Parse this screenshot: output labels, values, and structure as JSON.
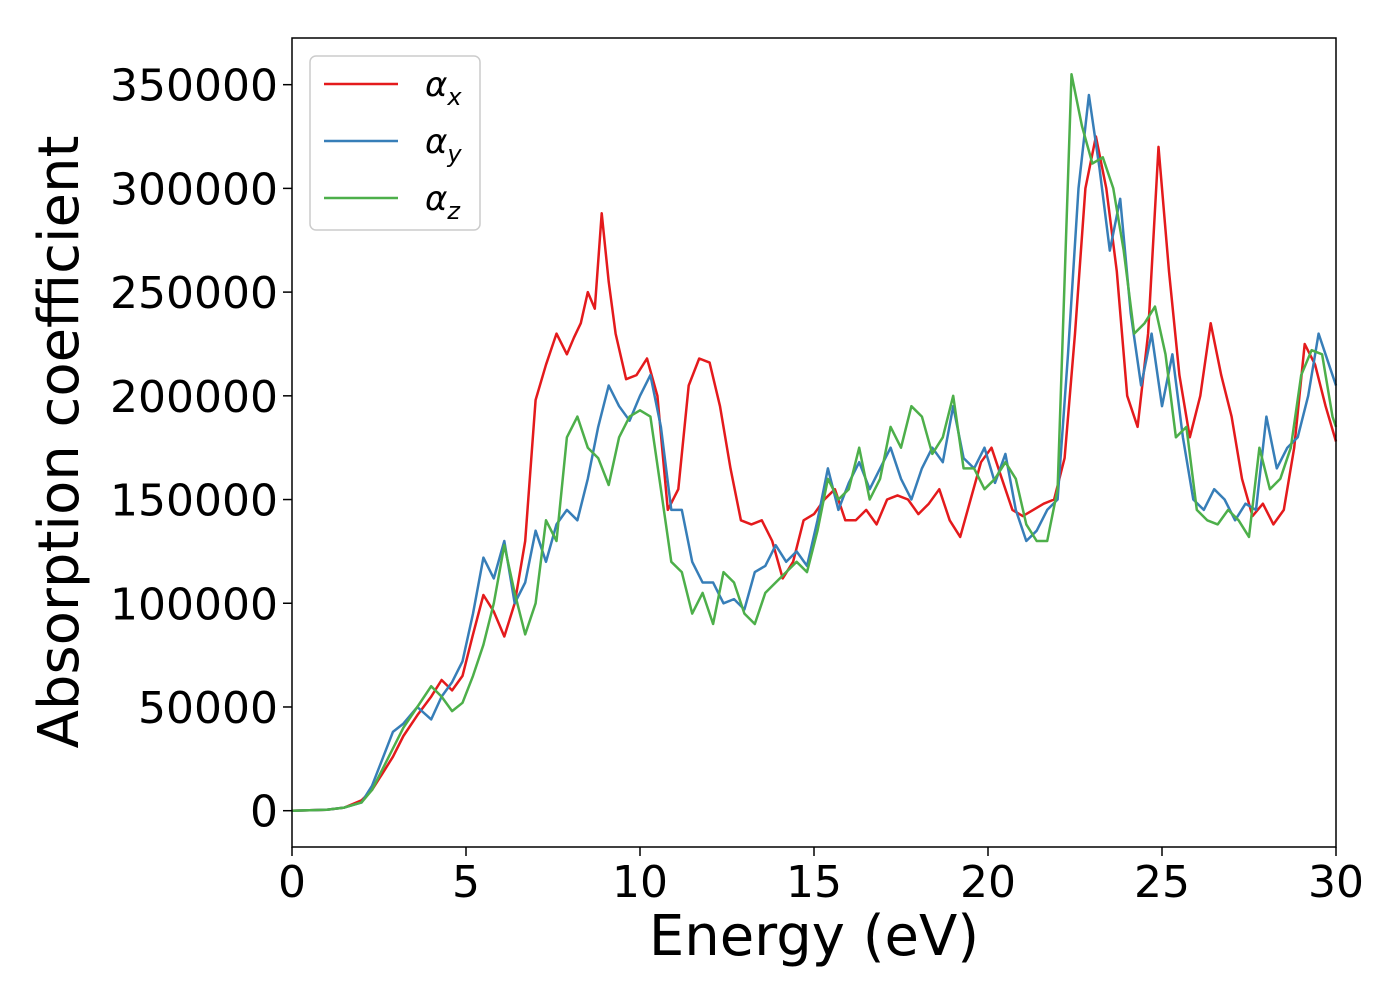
{
  "chart_data": {
    "type": "line",
    "title": "",
    "xlabel": "Energy (eV)",
    "ylabel": "Absorption coefficient",
    "xlim": [
      0,
      30
    ],
    "ylim": [
      -17500,
      372500
    ],
    "xticks": [
      0,
      5,
      10,
      15,
      20,
      25,
      30
    ],
    "yticks": [
      0,
      50000,
      100000,
      150000,
      200000,
      250000,
      300000,
      350000
    ],
    "grid": false,
    "legend_position": "top-left",
    "series": [
      {
        "name": "α",
        "subscript": "x",
        "color": "#e41a1c",
        "x": [
          0,
          1,
          1.5,
          2,
          2.3,
          2.6,
          2.9,
          3.2,
          3.6,
          4.0,
          4.3,
          4.6,
          4.9,
          5.2,
          5.5,
          5.8,
          6.1,
          6.4,
          6.7,
          7.0,
          7.3,
          7.6,
          7.9,
          8.1,
          8.3,
          8.5,
          8.7,
          8.9,
          9.1,
          9.3,
          9.6,
          9.9,
          10.2,
          10.5,
          10.8,
          11.1,
          11.4,
          11.7,
          12.0,
          12.3,
          12.6,
          12.9,
          13.2,
          13.5,
          13.8,
          14.1,
          14.4,
          14.7,
          15.0,
          15.3,
          15.6,
          15.9,
          16.2,
          16.5,
          16.8,
          17.1,
          17.4,
          17.7,
          18.0,
          18.3,
          18.6,
          18.9,
          19.2,
          19.5,
          19.8,
          20.1,
          20.4,
          20.7,
          21.0,
          21.3,
          21.6,
          21.9,
          22.2,
          22.5,
          22.8,
          23.1,
          23.4,
          23.7,
          24.0,
          24.3,
          24.6,
          24.9,
          25.2,
          25.5,
          25.8,
          26.1,
          26.4,
          26.7,
          27.0,
          27.3,
          27.6,
          27.9,
          28.2,
          28.5,
          28.8,
          29.1,
          29.4,
          29.7,
          30.0
        ],
        "y": [
          0,
          500,
          1500,
          5000,
          10000,
          18000,
          26000,
          36000,
          46000,
          55000,
          63000,
          58000,
          65000,
          85000,
          104000,
          96000,
          84000,
          100000,
          130000,
          198000,
          215000,
          230000,
          220000,
          228000,
          235000,
          250000,
          242000,
          288000,
          255000,
          230000,
          208000,
          210000,
          218000,
          200000,
          145000,
          155000,
          205000,
          218000,
          216000,
          195000,
          165000,
          140000,
          138000,
          140000,
          130000,
          112000,
          120000,
          140000,
          143000,
          150000,
          155000,
          140000,
          140000,
          145000,
          138000,
          150000,
          152000,
          150000,
          143000,
          148000,
          155000,
          140000,
          132000,
          150000,
          168000,
          175000,
          160000,
          145000,
          142000,
          145000,
          148000,
          150000,
          170000,
          230000,
          300000,
          325000,
          300000,
          260000,
          200000,
          185000,
          230000,
          320000,
          260000,
          210000,
          180000,
          200000,
          235000,
          210000,
          190000,
          160000,
          142000,
          148000,
          138000,
          145000,
          175000,
          225000,
          215000,
          195000,
          178000
        ]
      },
      {
        "name": "α",
        "subscript": "y",
        "color": "#377eb8",
        "x": [
          0,
          1,
          1.5,
          2,
          2.3,
          2.6,
          2.9,
          3.2,
          3.6,
          4.0,
          4.3,
          4.6,
          4.9,
          5.2,
          5.5,
          5.8,
          6.1,
          6.4,
          6.7,
          7.0,
          7.3,
          7.6,
          7.9,
          8.2,
          8.5,
          8.8,
          9.1,
          9.4,
          9.7,
          10.0,
          10.3,
          10.6,
          10.9,
          11.2,
          11.5,
          11.8,
          12.1,
          12.4,
          12.7,
          13.0,
          13.3,
          13.6,
          13.9,
          14.2,
          14.5,
          14.8,
          15.1,
          15.4,
          15.7,
          16.0,
          16.3,
          16.6,
          16.9,
          17.2,
          17.5,
          17.8,
          18.1,
          18.4,
          18.7,
          19.0,
          19.3,
          19.6,
          19.9,
          20.2,
          20.5,
          20.8,
          21.1,
          21.4,
          21.7,
          22.0,
          22.3,
          22.6,
          22.9,
          23.2,
          23.5,
          23.8,
          24.1,
          24.4,
          24.7,
          25.0,
          25.3,
          25.6,
          25.9,
          26.2,
          26.5,
          26.8,
          27.1,
          27.4,
          27.7,
          28.0,
          28.3,
          28.6,
          28.9,
          29.2,
          29.5,
          29.8,
          30.0
        ],
        "y": [
          0,
          500,
          1500,
          4000,
          12000,
          25000,
          38000,
          42000,
          50000,
          44000,
          55000,
          62000,
          72000,
          95000,
          122000,
          112000,
          130000,
          100000,
          110000,
          135000,
          120000,
          138000,
          145000,
          140000,
          160000,
          185000,
          205000,
          195000,
          188000,
          200000,
          210000,
          185000,
          145000,
          145000,
          120000,
          110000,
          110000,
          100000,
          102000,
          97000,
          115000,
          118000,
          128000,
          120000,
          125000,
          118000,
          140000,
          165000,
          145000,
          158000,
          168000,
          155000,
          165000,
          175000,
          160000,
          150000,
          165000,
          175000,
          168000,
          195000,
          170000,
          165000,
          175000,
          158000,
          172000,
          145000,
          130000,
          135000,
          145000,
          150000,
          220000,
          300000,
          345000,
          310000,
          270000,
          295000,
          240000,
          205000,
          230000,
          195000,
          220000,
          180000,
          150000,
          145000,
          155000,
          150000,
          140000,
          148000,
          145000,
          190000,
          165000,
          175000,
          180000,
          200000,
          230000,
          215000,
          205000
        ]
      },
      {
        "name": "α",
        "subscript": "z",
        "color": "#4daf4a",
        "x": [
          0,
          1,
          1.5,
          2,
          2.3,
          2.6,
          2.9,
          3.2,
          3.6,
          4.0,
          4.3,
          4.6,
          4.9,
          5.2,
          5.5,
          5.8,
          6.1,
          6.4,
          6.7,
          7.0,
          7.3,
          7.6,
          7.9,
          8.2,
          8.5,
          8.8,
          9.1,
          9.4,
          9.7,
          10.0,
          10.3,
          10.6,
          10.9,
          11.2,
          11.5,
          11.8,
          12.1,
          12.4,
          12.7,
          13.0,
          13.3,
          13.6,
          13.9,
          14.2,
          14.5,
          14.8,
          15.1,
          15.4,
          15.7,
          16.0,
          16.3,
          16.6,
          16.9,
          17.2,
          17.5,
          17.8,
          18.1,
          18.4,
          18.7,
          19.0,
          19.3,
          19.6,
          19.9,
          20.2,
          20.5,
          20.8,
          21.1,
          21.4,
          21.7,
          22.0,
          22.4,
          22.7,
          23.0,
          23.3,
          23.6,
          23.9,
          24.2,
          24.5,
          24.8,
          25.1,
          25.4,
          25.7,
          26.0,
          26.3,
          26.6,
          26.9,
          27.2,
          27.5,
          27.8,
          28.1,
          28.4,
          28.7,
          29.0,
          29.3,
          29.6,
          29.9,
          30.0
        ],
        "y": [
          0,
          500,
          1500,
          4000,
          10000,
          20000,
          30000,
          40000,
          50000,
          60000,
          55000,
          48000,
          52000,
          65000,
          80000,
          100000,
          128000,
          105000,
          85000,
          100000,
          140000,
          130000,
          180000,
          190000,
          175000,
          170000,
          157000,
          180000,
          190000,
          193000,
          190000,
          155000,
          120000,
          115000,
          95000,
          105000,
          90000,
          115000,
          110000,
          95000,
          90000,
          105000,
          110000,
          115000,
          120000,
          115000,
          135000,
          160000,
          150000,
          155000,
          175000,
          150000,
          160000,
          185000,
          175000,
          195000,
          190000,
          172000,
          180000,
          200000,
          165000,
          165000,
          155000,
          160000,
          168000,
          160000,
          138000,
          130000,
          130000,
          155000,
          355000,
          330000,
          312000,
          315000,
          300000,
          270000,
          230000,
          235000,
          243000,
          220000,
          180000,
          185000,
          145000,
          140000,
          138000,
          145000,
          140000,
          132000,
          175000,
          155000,
          160000,
          175000,
          210000,
          222000,
          220000,
          190000,
          185000
        ]
      }
    ]
  }
}
